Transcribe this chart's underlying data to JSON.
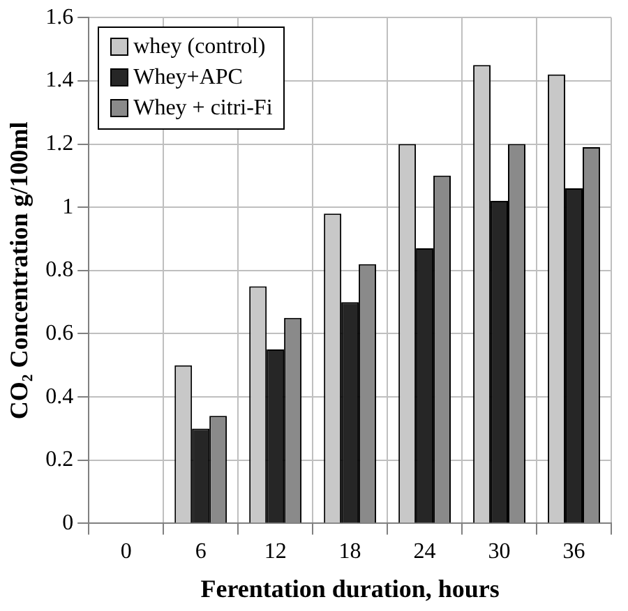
{
  "chart_data": {
    "type": "bar",
    "xlabel": "Ferentation duration, hours",
    "ylabel": "CO₂ Concentration g/100ml",
    "categories": [
      "0",
      "6",
      "12",
      "18",
      "24",
      "30",
      "36"
    ],
    "series": [
      {
        "name": "whey (control)",
        "color": "#c8c8c8",
        "values": [
          0,
          0.5,
          0.75,
          0.98,
          1.2,
          1.45,
          1.42
        ]
      },
      {
        "name": "Whey+APC",
        "color": "#262626",
        "values": [
          0,
          0.3,
          0.55,
          0.7,
          0.87,
          1.02,
          1.06
        ]
      },
      {
        "name": "Whey + citri-Fi",
        "color": "#8a8a8a",
        "values": [
          0,
          0.34,
          0.65,
          0.82,
          1.1,
          1.2,
          1.19
        ]
      }
    ],
    "ylim": [
      0,
      1.6
    ],
    "yticks": [
      0,
      0.2,
      0.4,
      0.6,
      0.8,
      1,
      1.2,
      1.4,
      1.6
    ],
    "grid": true,
    "legend": "top left"
  }
}
